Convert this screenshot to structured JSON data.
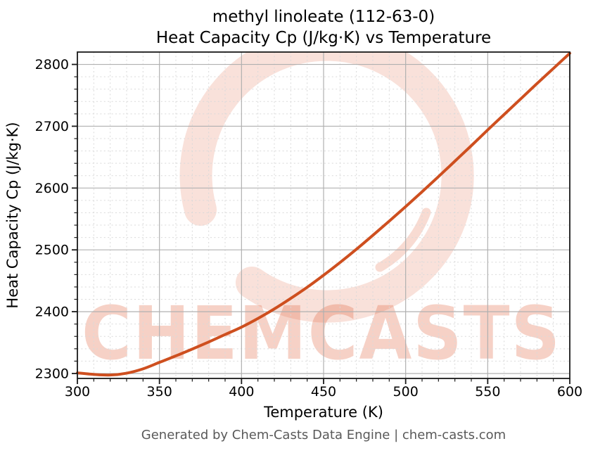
{
  "header": {
    "title_line1": "methyl linoleate (112-63-0)",
    "title_line2": "Heat Capacity Cp (J/kg·K) vs Temperature"
  },
  "footer": {
    "credit": "Generated by Chem-Casts Data Engine | chem-casts.com"
  },
  "watermark": {
    "text": "CHEMCASTS"
  },
  "colors": {
    "curve": "#ce4f1f",
    "grid_major": "#b0b0b0",
    "grid_minor": "#d9d9d9",
    "spine": "#1a1a1a",
    "tick_label": "#000000",
    "footer_text": "#595959",
    "watermark_fill": "#e05a33"
  },
  "chart_data": {
    "type": "line",
    "title": "methyl linoleate (112-63-0)",
    "subtitle": "Heat Capacity Cp (J/kg·K) vs Temperature",
    "xlabel": "Temperature (K)",
    "ylabel": "Heat Capacity Cp (J/kg·K)",
    "xlim": [
      300,
      600
    ],
    "ylim": [
      2292,
      2820
    ],
    "x_major_ticks": [
      300,
      350,
      400,
      450,
      500,
      550,
      600
    ],
    "y_major_ticks": [
      2300,
      2400,
      2500,
      2600,
      2700,
      2800
    ],
    "x_minor_step": 10,
    "y_minor_step": 20,
    "grid": "major-solid, minor-dashed",
    "legend": false,
    "series": [
      {
        "name": "Heat Capacity Cp",
        "color": "#ce4f1f",
        "x": [
          300,
          310,
          320,
          330,
          340,
          350,
          360,
          370,
          380,
          390,
          400,
          410,
          420,
          430,
          440,
          450,
          460,
          470,
          480,
          490,
          500,
          510,
          520,
          530,
          540,
          550,
          560,
          570,
          580,
          590,
          600
        ],
        "y": [
          2301,
          2298.5,
          2297.5,
          2300.5,
          2307.5,
          2318,
          2328.5,
          2339.5,
          2351,
          2363,
          2375,
          2389,
          2404.5,
          2421.5,
          2439.5,
          2459,
          2479.5,
          2501,
          2523.5,
          2546.5,
          2570,
          2594,
          2618.5,
          2643.5,
          2668.5,
          2694,
          2719,
          2744,
          2769,
          2793.5,
          2818
        ]
      }
    ]
  }
}
